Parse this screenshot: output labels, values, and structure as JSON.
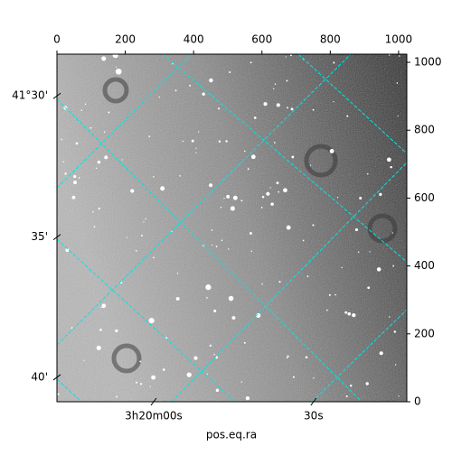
{
  "chart_data": {
    "type": "image",
    "xlabel": "pos.eq.ra",
    "xlim": [
      0,
      1024
    ],
    "xticks": [
      0,
      200,
      400,
      600,
      800,
      1000
    ],
    "ylim": [
      0,
      1024
    ],
    "yticks": [
      0,
      200,
      400,
      600,
      800,
      1000
    ],
    "world_xticks": [
      {
        "value": 283,
        "label": "3h20m00s"
      },
      {
        "value": 751,
        "label": "30s"
      }
    ],
    "world_yticks": [
      {
        "value": 901,
        "label": "41°30'"
      },
      {
        "value": 485,
        "label": "35'"
      },
      {
        "value": 72,
        "label": "40'"
      }
    ],
    "grid_color": "#00e5e5"
  }
}
